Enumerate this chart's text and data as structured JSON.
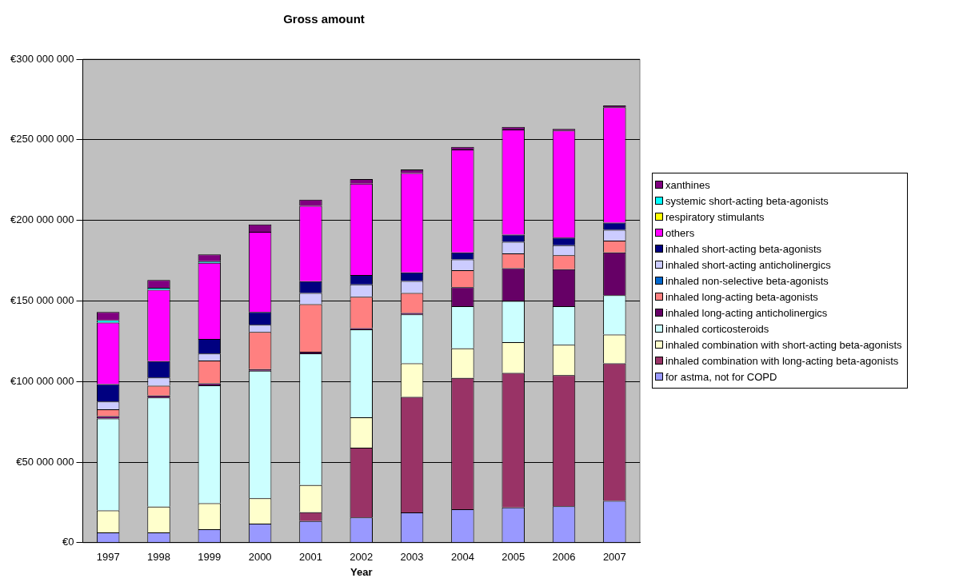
{
  "chart_data": {
    "type": "bar",
    "title": "Gross amount",
    "xlabel": "Year",
    "stacked": true,
    "grid": "y",
    "legend": "right",
    "categories": [
      "1997",
      "1998",
      "1999",
      "2000",
      "2001",
      "2002",
      "2003",
      "2004",
      "2005",
      "2006",
      "2007"
    ],
    "ylim": [
      0,
      300000000
    ],
    "yticks": [
      {
        "value": 0,
        "label": "€0"
      },
      {
        "value": 50000000,
        "label": "€50 000 000"
      },
      {
        "value": 100000000,
        "label": "€100 000 000"
      },
      {
        "value": 150000000,
        "label": "€150 000 000"
      },
      {
        "value": 200000000,
        "label": "€200 000 000"
      },
      {
        "value": 250000000,
        "label": "€250 000 000"
      },
      {
        "value": 300000000,
        "label": "€300 000 000"
      }
    ],
    "series": [
      {
        "name": "for astma, not for COPD",
        "color": "#9999ff",
        "values": [
          6300000,
          6300000,
          8300000,
          11800000,
          13400000,
          15700000,
          18700000,
          20700000,
          21900000,
          22600000,
          26000000
        ]
      },
      {
        "name": "inhaled combination with long-acting beta-agonists",
        "color": "#993366",
        "values": [
          0,
          0,
          0,
          0,
          5500000,
          43200000,
          71700000,
          81500000,
          83400000,
          81300000,
          85200000
        ]
      },
      {
        "name": "inhaled combination with short-acting beta-agonists",
        "color": "#ffffcc",
        "values": [
          13700000,
          16100000,
          16100000,
          15800000,
          16900000,
          18900000,
          20800000,
          18300000,
          19100000,
          18900000,
          17900000
        ]
      },
      {
        "name": "inhaled corticosteroids",
        "color": "#ccffff",
        "values": [
          57000000,
          67600000,
          73200000,
          79100000,
          81700000,
          54500000,
          30500000,
          26200000,
          25600000,
          23900000,
          24400000
        ]
      },
      {
        "name": "inhaled long-acting anticholinergics",
        "color": "#660066",
        "values": [
          1500000,
          1300000,
          1200000,
          1000000,
          1000000,
          800000,
          800000,
          11800000,
          20300000,
          23000000,
          26600000
        ]
      },
      {
        "name": "inhaled long-acting beta-agonists",
        "color": "#ff8080",
        "values": [
          4200000,
          6100000,
          14200000,
          23000000,
          29500000,
          19500000,
          12400000,
          10600000,
          9200000,
          8600000,
          7300000
        ]
      },
      {
        "name": "inhaled non-selective beta-agonists",
        "color": "#0066cc",
        "values": [
          0,
          0,
          0,
          0,
          0,
          0,
          0,
          0,
          0,
          0,
          0
        ]
      },
      {
        "name": "inhaled short-acting anticholinergics",
        "color": "#ccccff",
        "values": [
          4900000,
          5000000,
          4300000,
          4500000,
          6900000,
          7600000,
          7500000,
          6700000,
          7100000,
          6300000,
          6700000
        ]
      },
      {
        "name": "inhaled short-acting beta-agonists",
        "color": "#000080",
        "values": [
          10800000,
          10200000,
          9100000,
          7900000,
          7300000,
          5900000,
          5300000,
          4300000,
          4500000,
          4600000,
          4500000
        ]
      },
      {
        "name": "others",
        "color": "#ff00ff",
        "values": [
          38200000,
          44300000,
          47200000,
          49800000,
          46800000,
          56700000,
          61600000,
          63800000,
          65200000,
          66500000,
          71500000
        ]
      },
      {
        "name": "respiratory stimulants",
        "color": "#ffff00",
        "values": [
          0,
          0,
          0,
          0,
          0,
          0,
          0,
          0,
          0,
          0,
          0
        ]
      },
      {
        "name": "systemic short-acting beta-agonists",
        "color": "#00ffff",
        "values": [
          1400000,
          1200000,
          1000000,
          0,
          0,
          0,
          0,
          0,
          0,
          0,
          0
        ]
      },
      {
        "name": "xanthines",
        "color": "#800080",
        "values": [
          5100000,
          4900000,
          4300000,
          4500000,
          3800000,
          2800000,
          2200000,
          1600000,
          1600000,
          1000000,
          1100000
        ]
      }
    ]
  }
}
